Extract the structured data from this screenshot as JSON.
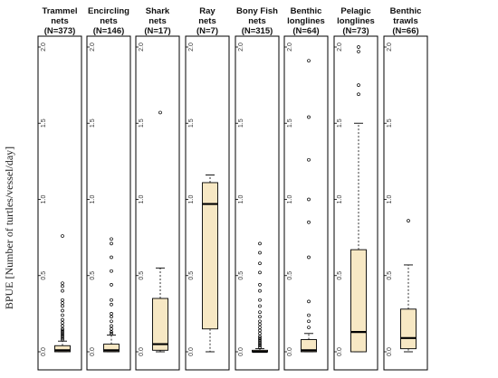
{
  "chart_data": {
    "type": "box",
    "ylabel": "BPUE [Number of turtles/vessel/day]",
    "ylim": [
      0,
      2.1
    ],
    "yticks": [
      0.0,
      0.5,
      1.0,
      1.5,
      2.0
    ],
    "ytick_labels": [
      "0.0",
      "0.5",
      "1.0",
      "1.5",
      "2.0"
    ],
    "box_fill": "#f7e8c4",
    "panels": [
      {
        "title_lines": [
          "Trammel",
          "nets",
          "(N=373)"
        ],
        "box": {
          "whisker_low": 0,
          "q1": 0,
          "median": 0.01,
          "q3": 0.04,
          "whisker_high": 0.07
        },
        "outliers": [
          0.08,
          0.09,
          0.1,
          0.11,
          0.12,
          0.13,
          0.14,
          0.15,
          0.17,
          0.19,
          0.21,
          0.24,
          0.27,
          0.3,
          0.32,
          0.34,
          0.4,
          0.43,
          0.45,
          0.76
        ]
      },
      {
        "title_lines": [
          "Encircling",
          "nets",
          "(N=146)"
        ],
        "box": {
          "whisker_low": 0,
          "q1": 0,
          "median": 0.01,
          "q3": 0.05,
          "whisker_high": 0.11
        },
        "outliers": [
          0.12,
          0.13,
          0.15,
          0.17,
          0.2,
          0.23,
          0.25,
          0.31,
          0.34,
          0.44,
          0.53,
          0.62,
          0.71,
          0.74
        ]
      },
      {
        "title_lines": [
          "Shark",
          "nets",
          "(N=17)"
        ],
        "box": {
          "whisker_low": 0,
          "q1": 0.01,
          "median": 0.05,
          "q3": 0.35,
          "whisker_high": 0.55
        },
        "outliers": [
          1.57
        ]
      },
      {
        "title_lines": [
          "Ray",
          "nets",
          "(N=7)"
        ],
        "box": {
          "whisker_low": 0,
          "q1": 0.15,
          "median": 0.97,
          "q3": 1.11,
          "whisker_high": 1.16
        },
        "outliers": []
      },
      {
        "title_lines": [
          "Bony Fish",
          "nets",
          "(N=315)"
        ],
        "box": {
          "whisker_low": 0,
          "q1": 0,
          "median": 0,
          "q3": 0.01,
          "whisker_high": 0.02
        },
        "outliers": [
          0.03,
          0.04,
          0.05,
          0.06,
          0.07,
          0.08,
          0.09,
          0.1,
          0.12,
          0.14,
          0.16,
          0.18,
          0.2,
          0.23,
          0.26,
          0.3,
          0.34,
          0.4,
          0.44,
          0.52,
          0.58,
          0.65,
          0.71
        ]
      },
      {
        "title_lines": [
          "Benthic",
          "longlines",
          "(N=64)"
        ],
        "box": {
          "whisker_low": 0,
          "q1": 0,
          "median": 0.01,
          "q3": 0.08,
          "whisker_high": 0.12
        },
        "outliers": [
          0.16,
          0.2,
          0.24,
          0.33,
          0.62,
          0.85,
          1.0,
          1.26,
          1.54,
          1.91
        ]
      },
      {
        "title_lines": [
          "Pelagic",
          "longlines",
          "(N=73)"
        ],
        "box": {
          "whisker_low": 0,
          "q1": 0,
          "median": 0.13,
          "q3": 0.67,
          "whisker_high": 1.5
        },
        "outliers": [
          1.69,
          1.75,
          1.97,
          2.0
        ]
      },
      {
        "title_lines": [
          "Benthic",
          "trawls",
          "(N=66)"
        ],
        "box": {
          "whisker_low": 0,
          "q1": 0.02,
          "median": 0.09,
          "q3": 0.28,
          "whisker_high": 0.57
        },
        "outliers": [
          0.86
        ]
      }
    ]
  }
}
